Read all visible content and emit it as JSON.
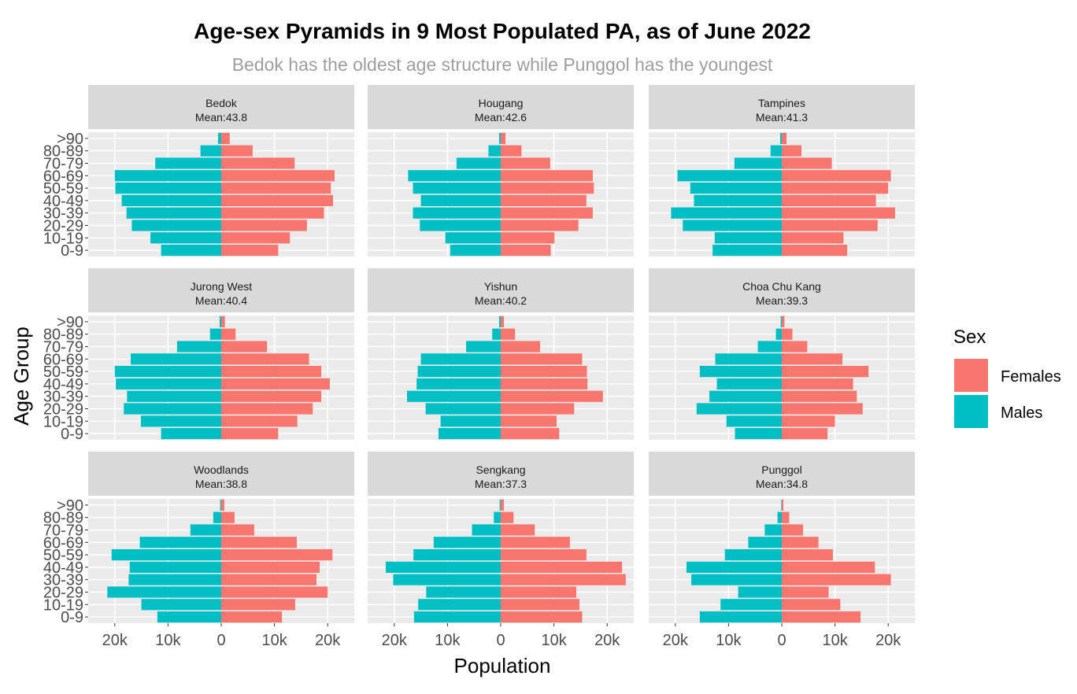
{
  "chart_data": {
    "type": "bar",
    "orientation": "horizontal",
    "title": "Age-sex Pyramids in 9 Most Populated PA, as of June 2022",
    "subtitle": "Bedok has the oldest age structure while Punggol has the youngest",
    "xlabel": "Population",
    "ylabel": "Age Group",
    "xlim": [
      -25000,
      25000
    ],
    "x_ticks": [
      -20000,
      -10000,
      0,
      10000,
      20000
    ],
    "x_tick_labels": [
      "20k",
      "10k",
      "0",
      "10k",
      "20k"
    ],
    "categories": [
      "0-9",
      "10-19",
      "20-29",
      "30-39",
      "40-49",
      "50-59",
      "60-69",
      "70-79",
      "80-89",
      ">90"
    ],
    "legend": {
      "title": "Sex",
      "position": "right",
      "entries": [
        {
          "label": "Females",
          "color": "#F8766D"
        },
        {
          "label": "Males",
          "color": "#00BFC4"
        }
      ]
    },
    "grid": true,
    "panels": [
      {
        "name": "Bedok",
        "mean_label": "Mean:43.8",
        "males": [
          11300,
          13300,
          16800,
          17800,
          18700,
          19900,
          20000,
          12400,
          3900,
          600
        ],
        "females": [
          10700,
          12900,
          16100,
          19300,
          21000,
          20600,
          21300,
          13800,
          5900,
          1600
        ]
      },
      {
        "name": "Hougang",
        "mean_label": "Mean:42.6",
        "males": [
          9500,
          10400,
          15200,
          16500,
          15000,
          16500,
          17400,
          8300,
          2300,
          300
        ],
        "females": [
          9400,
          10100,
          14600,
          17300,
          16100,
          17500,
          17300,
          9300,
          3900,
          900
        ]
      },
      {
        "name": "Tampines",
        "mean_label": "Mean:41.3",
        "males": [
          13000,
          12600,
          18600,
          20800,
          16500,
          17200,
          19600,
          8900,
          2100,
          300
        ],
        "females": [
          12300,
          11600,
          18000,
          21300,
          17700,
          20000,
          20500,
          9400,
          3700,
          900
        ]
      },
      {
        "name": "Jurong West",
        "mean_label": "Mean:40.4",
        "males": [
          11300,
          15100,
          18300,
          17700,
          19800,
          20000,
          17000,
          8300,
          2100,
          300
        ],
        "females": [
          10700,
          14300,
          17200,
          18800,
          20400,
          18800,
          16500,
          8600,
          2700,
          700
        ]
      },
      {
        "name": "Yishun",
        "mean_label": "Mean:40.2",
        "males": [
          11700,
          11300,
          14100,
          17600,
          15800,
          15600,
          15000,
          6500,
          1600,
          300
        ],
        "females": [
          11000,
          10500,
          13800,
          19200,
          16300,
          16200,
          15300,
          7400,
          2700,
          600
        ]
      },
      {
        "name": "Choa Chu Kang",
        "mean_label": "Mean:39.3",
        "males": [
          8800,
          10400,
          16000,
          13600,
          12200,
          15400,
          12500,
          4500,
          1100,
          200
        ],
        "females": [
          8600,
          10000,
          15200,
          14100,
          13400,
          16300,
          11400,
          4800,
          2000,
          500
        ]
      },
      {
        "name": "Woodlands",
        "mean_label": "Mean:38.8",
        "males": [
          12000,
          15000,
          21400,
          17400,
          17200,
          20600,
          15300,
          5800,
          1500,
          200
        ],
        "females": [
          11400,
          13900,
          20000,
          17900,
          18500,
          20900,
          14200,
          6200,
          2500,
          600
        ]
      },
      {
        "name": "Sengkang",
        "mean_label": "Mean:37.3",
        "males": [
          16300,
          15500,
          14000,
          20200,
          21600,
          16400,
          12600,
          5400,
          1300,
          200
        ],
        "females": [
          15300,
          14800,
          14200,
          23500,
          22800,
          16100,
          13000,
          6400,
          2400,
          600
        ]
      },
      {
        "name": "Punggol",
        "mean_label": "Mean:34.8",
        "males": [
          15400,
          11500,
          8200,
          17000,
          17900,
          10700,
          6300,
          3200,
          800,
          100
        ],
        "females": [
          14800,
          11000,
          8800,
          20500,
          17500,
          9600,
          6900,
          4000,
          1400,
          300
        ]
      }
    ]
  }
}
